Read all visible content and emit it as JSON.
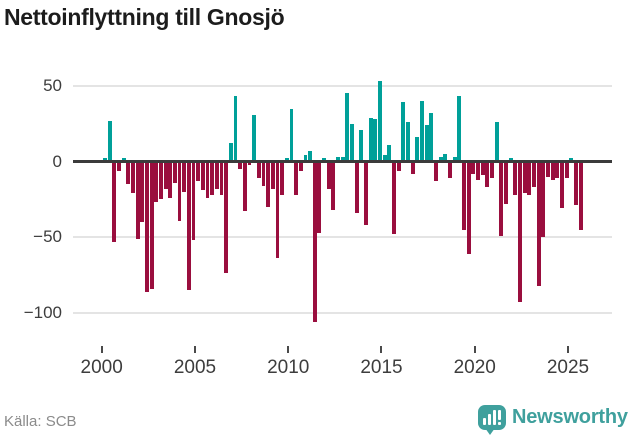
{
  "title": "Nettoinflyttning till Gnosjö",
  "source_label": "Källa: SCB",
  "logo": {
    "text": "Newsworthy",
    "icon": "speech-bubble-bar-chart",
    "color": "#3fa09d"
  },
  "colors": {
    "positive": "#00a099",
    "negative": "#9a0e3e",
    "zero_line": "#3b3b3b",
    "gridline": "#e4e4e4",
    "axis_text": "#3d3d3d"
  },
  "chart_data": {
    "type": "bar",
    "title": "Nettoinflyttning till Gnosjö",
    "x_unit": "quarter",
    "start": "2000Q1",
    "end": "2025Q3",
    "legend": "none",
    "grid": "horizontal",
    "ylim": [
      -126,
      67
    ],
    "yticks": [
      {
        "label": "50",
        "value": 50
      },
      {
        "label": "0",
        "value": 0
      },
      {
        "label": "−50",
        "value": -50
      },
      {
        "label": "−100",
        "value": -100
      }
    ],
    "xticks": [
      {
        "label": "2000",
        "year": 2000
      },
      {
        "label": "2005",
        "year": 2005
      },
      {
        "label": "2010",
        "year": 2010
      },
      {
        "label": "2015",
        "year": 2015
      },
      {
        "label": "2020",
        "year": 2020
      },
      {
        "label": "2025",
        "year": 2025
      }
    ],
    "positive_color": "#00a099",
    "negative_color": "#9a0e3e",
    "values": [
      2,
      27,
      -53,
      -6,
      2,
      -15,
      -21,
      -51,
      -40,
      -86,
      -84,
      -27,
      -25,
      -18,
      -24,
      -14,
      -39,
      -20,
      -85,
      -52,
      -13,
      -19,
      -24,
      -22,
      -18,
      -22,
      -74,
      12,
      43,
      -5,
      -33,
      -2,
      31,
      -11,
      -16,
      -30,
      -18,
      -64,
      -22,
      2,
      35,
      -22,
      -6,
      4,
      7,
      -106,
      -47,
      2,
      -18,
      -32,
      3,
      3,
      45,
      25,
      -34,
      21,
      -42,
      29,
      28,
      53,
      4,
      11,
      -48,
      -6,
      39,
      26,
      -8,
      16,
      40,
      24,
      32,
      -13,
      3,
      5,
      -11,
      3,
      43,
      -45,
      -61,
      -8,
      -12,
      -9,
      -17,
      -11,
      26,
      -49,
      -28,
      2,
      -22,
      -93,
      -21,
      -22,
      -17,
      -82,
      -50,
      -10,
      -12,
      -11,
      -31,
      -11,
      2,
      -29,
      -45
    ]
  }
}
